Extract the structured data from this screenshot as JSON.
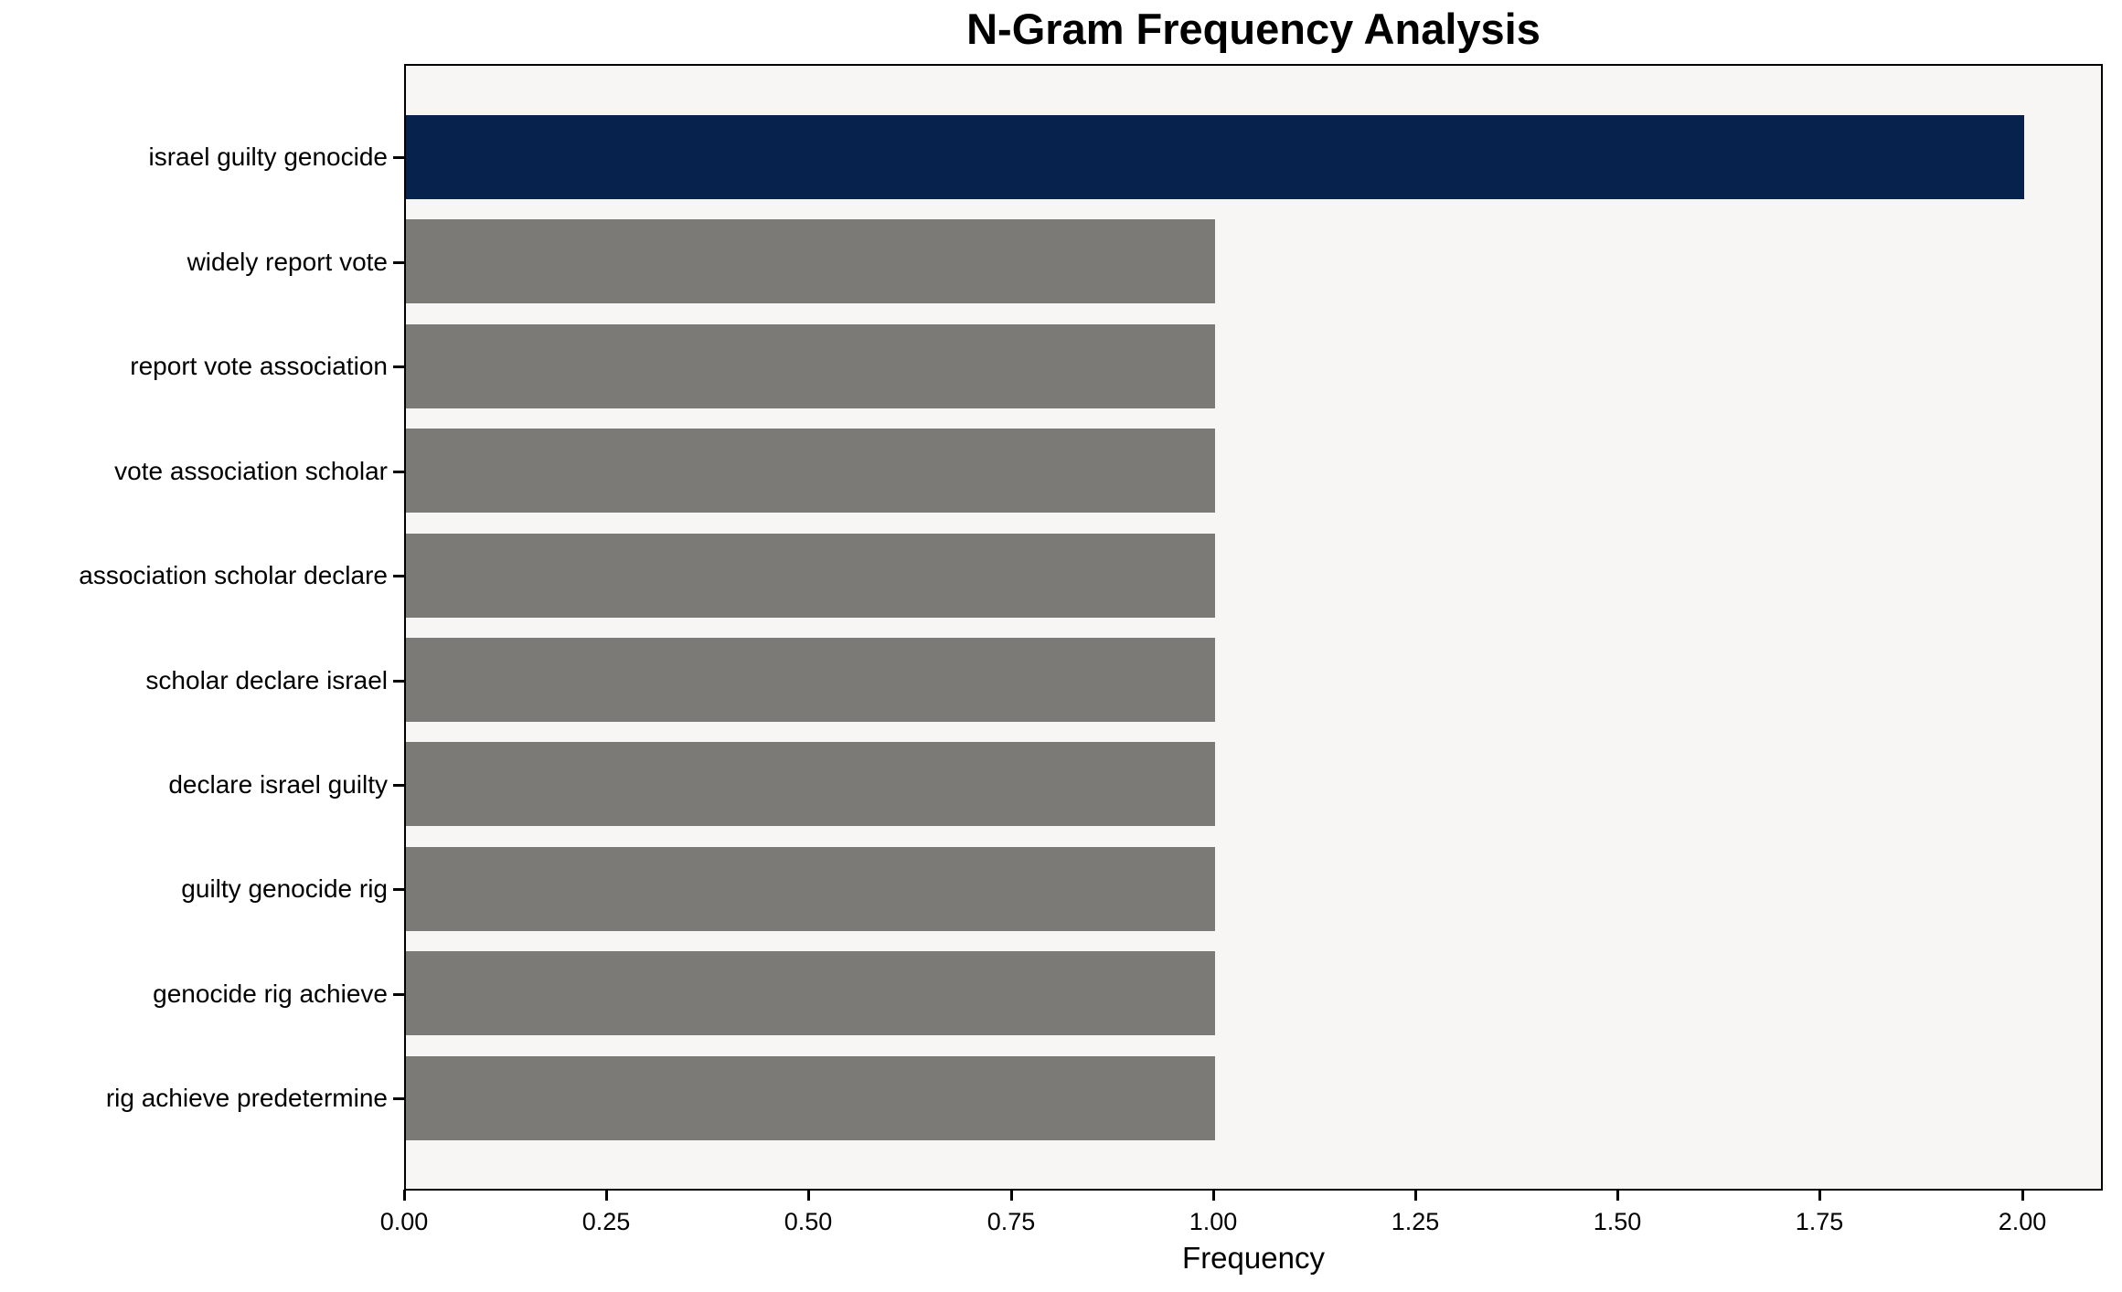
{
  "chart_data": {
    "type": "bar",
    "orientation": "horizontal",
    "title": "N-Gram Frequency Analysis",
    "xlabel": "Frequency",
    "ylabel": "",
    "categories": [
      "israel guilty genocide",
      "widely report vote",
      "report vote association",
      "vote association scholar",
      "association scholar declare",
      "scholar declare israel",
      "declare israel guilty",
      "guilty genocide rig",
      "genocide rig achieve",
      "rig achieve predetermine"
    ],
    "values": [
      2.0,
      1.0,
      1.0,
      1.0,
      1.0,
      1.0,
      1.0,
      1.0,
      1.0,
      1.0
    ],
    "bar_colors": [
      "#07234d",
      "#7b7a76",
      "#7b7a76",
      "#7b7a76",
      "#7b7a76",
      "#7b7a76",
      "#7b7a76",
      "#7b7a76",
      "#7b7a76",
      "#7b7a76"
    ],
    "xlim": [
      0,
      2.1
    ],
    "xticks": [
      {
        "value": 0.0,
        "label": "0.00"
      },
      {
        "value": 0.25,
        "label": "0.25"
      },
      {
        "value": 0.5,
        "label": "0.50"
      },
      {
        "value": 0.75,
        "label": "0.75"
      },
      {
        "value": 1.0,
        "label": "1.00"
      },
      {
        "value": 1.25,
        "label": "1.25"
      },
      {
        "value": 1.5,
        "label": "1.50"
      },
      {
        "value": 1.75,
        "label": "1.75"
      },
      {
        "value": 2.0,
        "label": "2.00"
      }
    ],
    "grid": false,
    "legend": false,
    "plot_background": "#f7f6f4",
    "frame_color": "#000000"
  }
}
